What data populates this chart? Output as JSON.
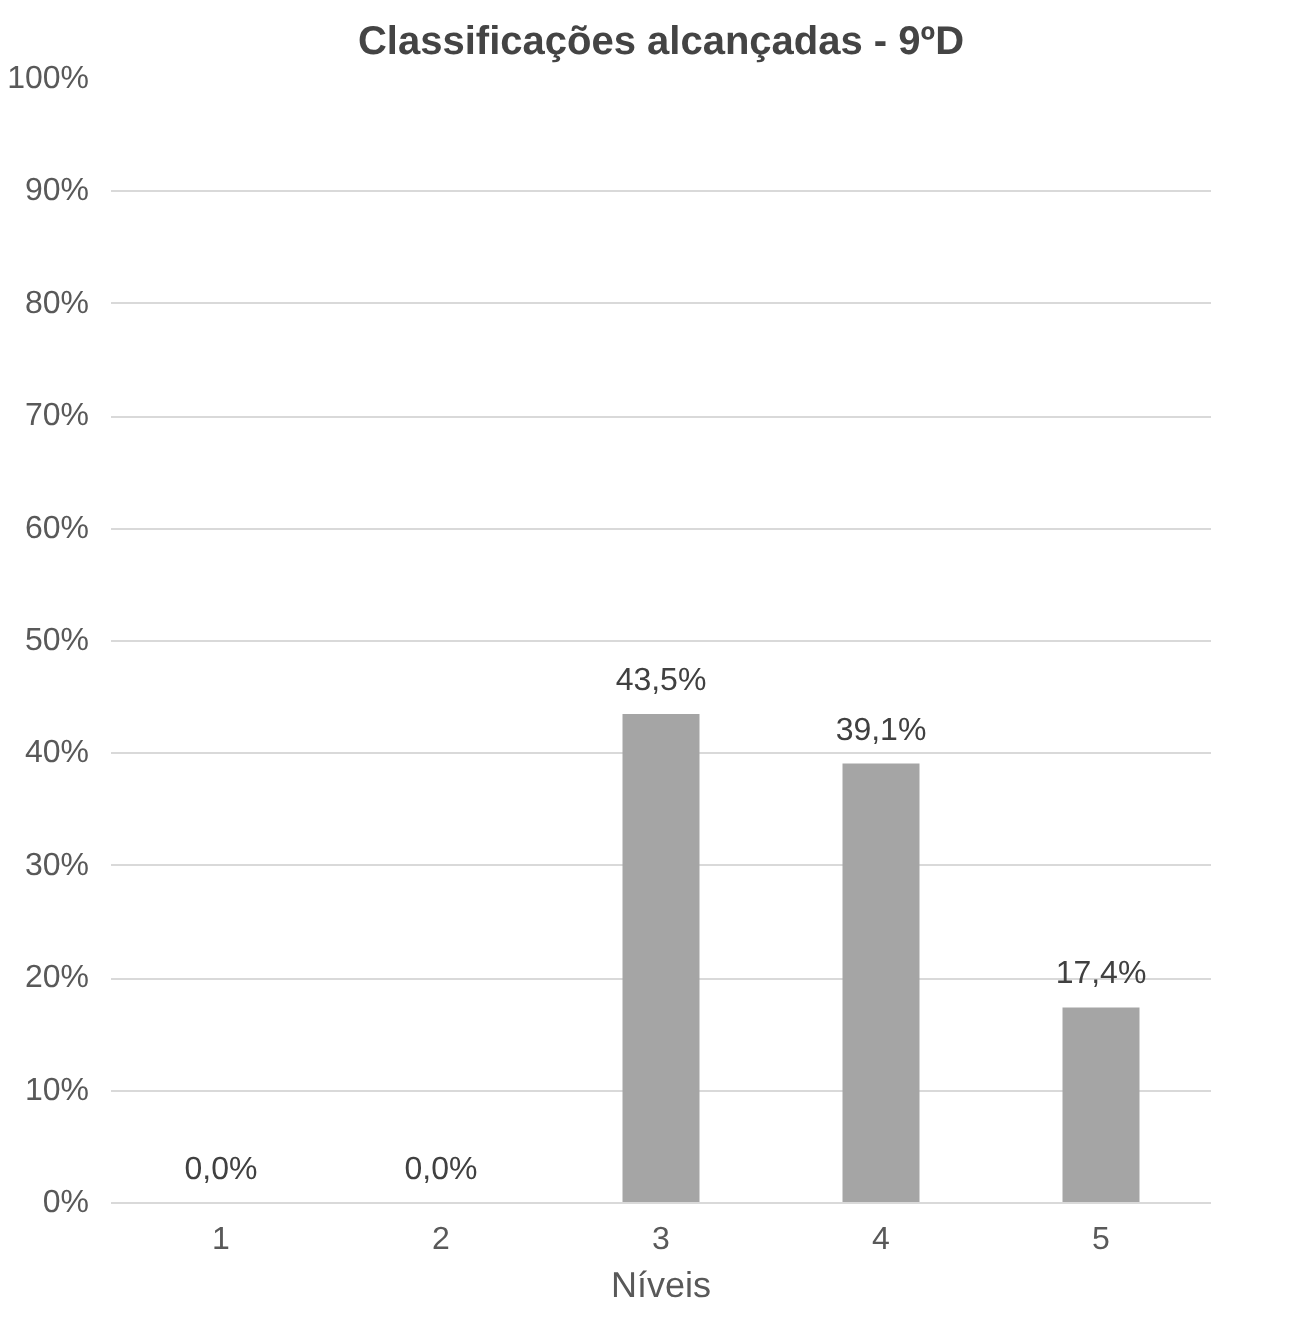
{
  "chart_data": {
    "type": "bar",
    "title": "Classificações alcançadas - 9ºD",
    "xlabel": "Níveis",
    "categories": [
      "1",
      "2",
      "3",
      "4",
      "5"
    ],
    "values": [
      0.0,
      0.0,
      43.5,
      39.1,
      17.4
    ],
    "value_labels": [
      "0,0%",
      "0,0%",
      "43,5%",
      "39,1%",
      "17,4%"
    ],
    "color": "#a5a5a5",
    "ylim": [
      0,
      100
    ],
    "yticks": [
      {
        "value": 0,
        "label": "0%"
      },
      {
        "value": 10,
        "label": "10%"
      },
      {
        "value": 20,
        "label": "20%"
      },
      {
        "value": 30,
        "label": "30%"
      },
      {
        "value": 40,
        "label": "40%"
      },
      {
        "value": 50,
        "label": "50%"
      },
      {
        "value": 60,
        "label": "60%"
      },
      {
        "value": 70,
        "label": "70%"
      },
      {
        "value": 80,
        "label": "80%"
      },
      {
        "value": 90,
        "label": "90%"
      },
      {
        "value": 100,
        "label": "100%"
      }
    ],
    "grid": "y"
  }
}
